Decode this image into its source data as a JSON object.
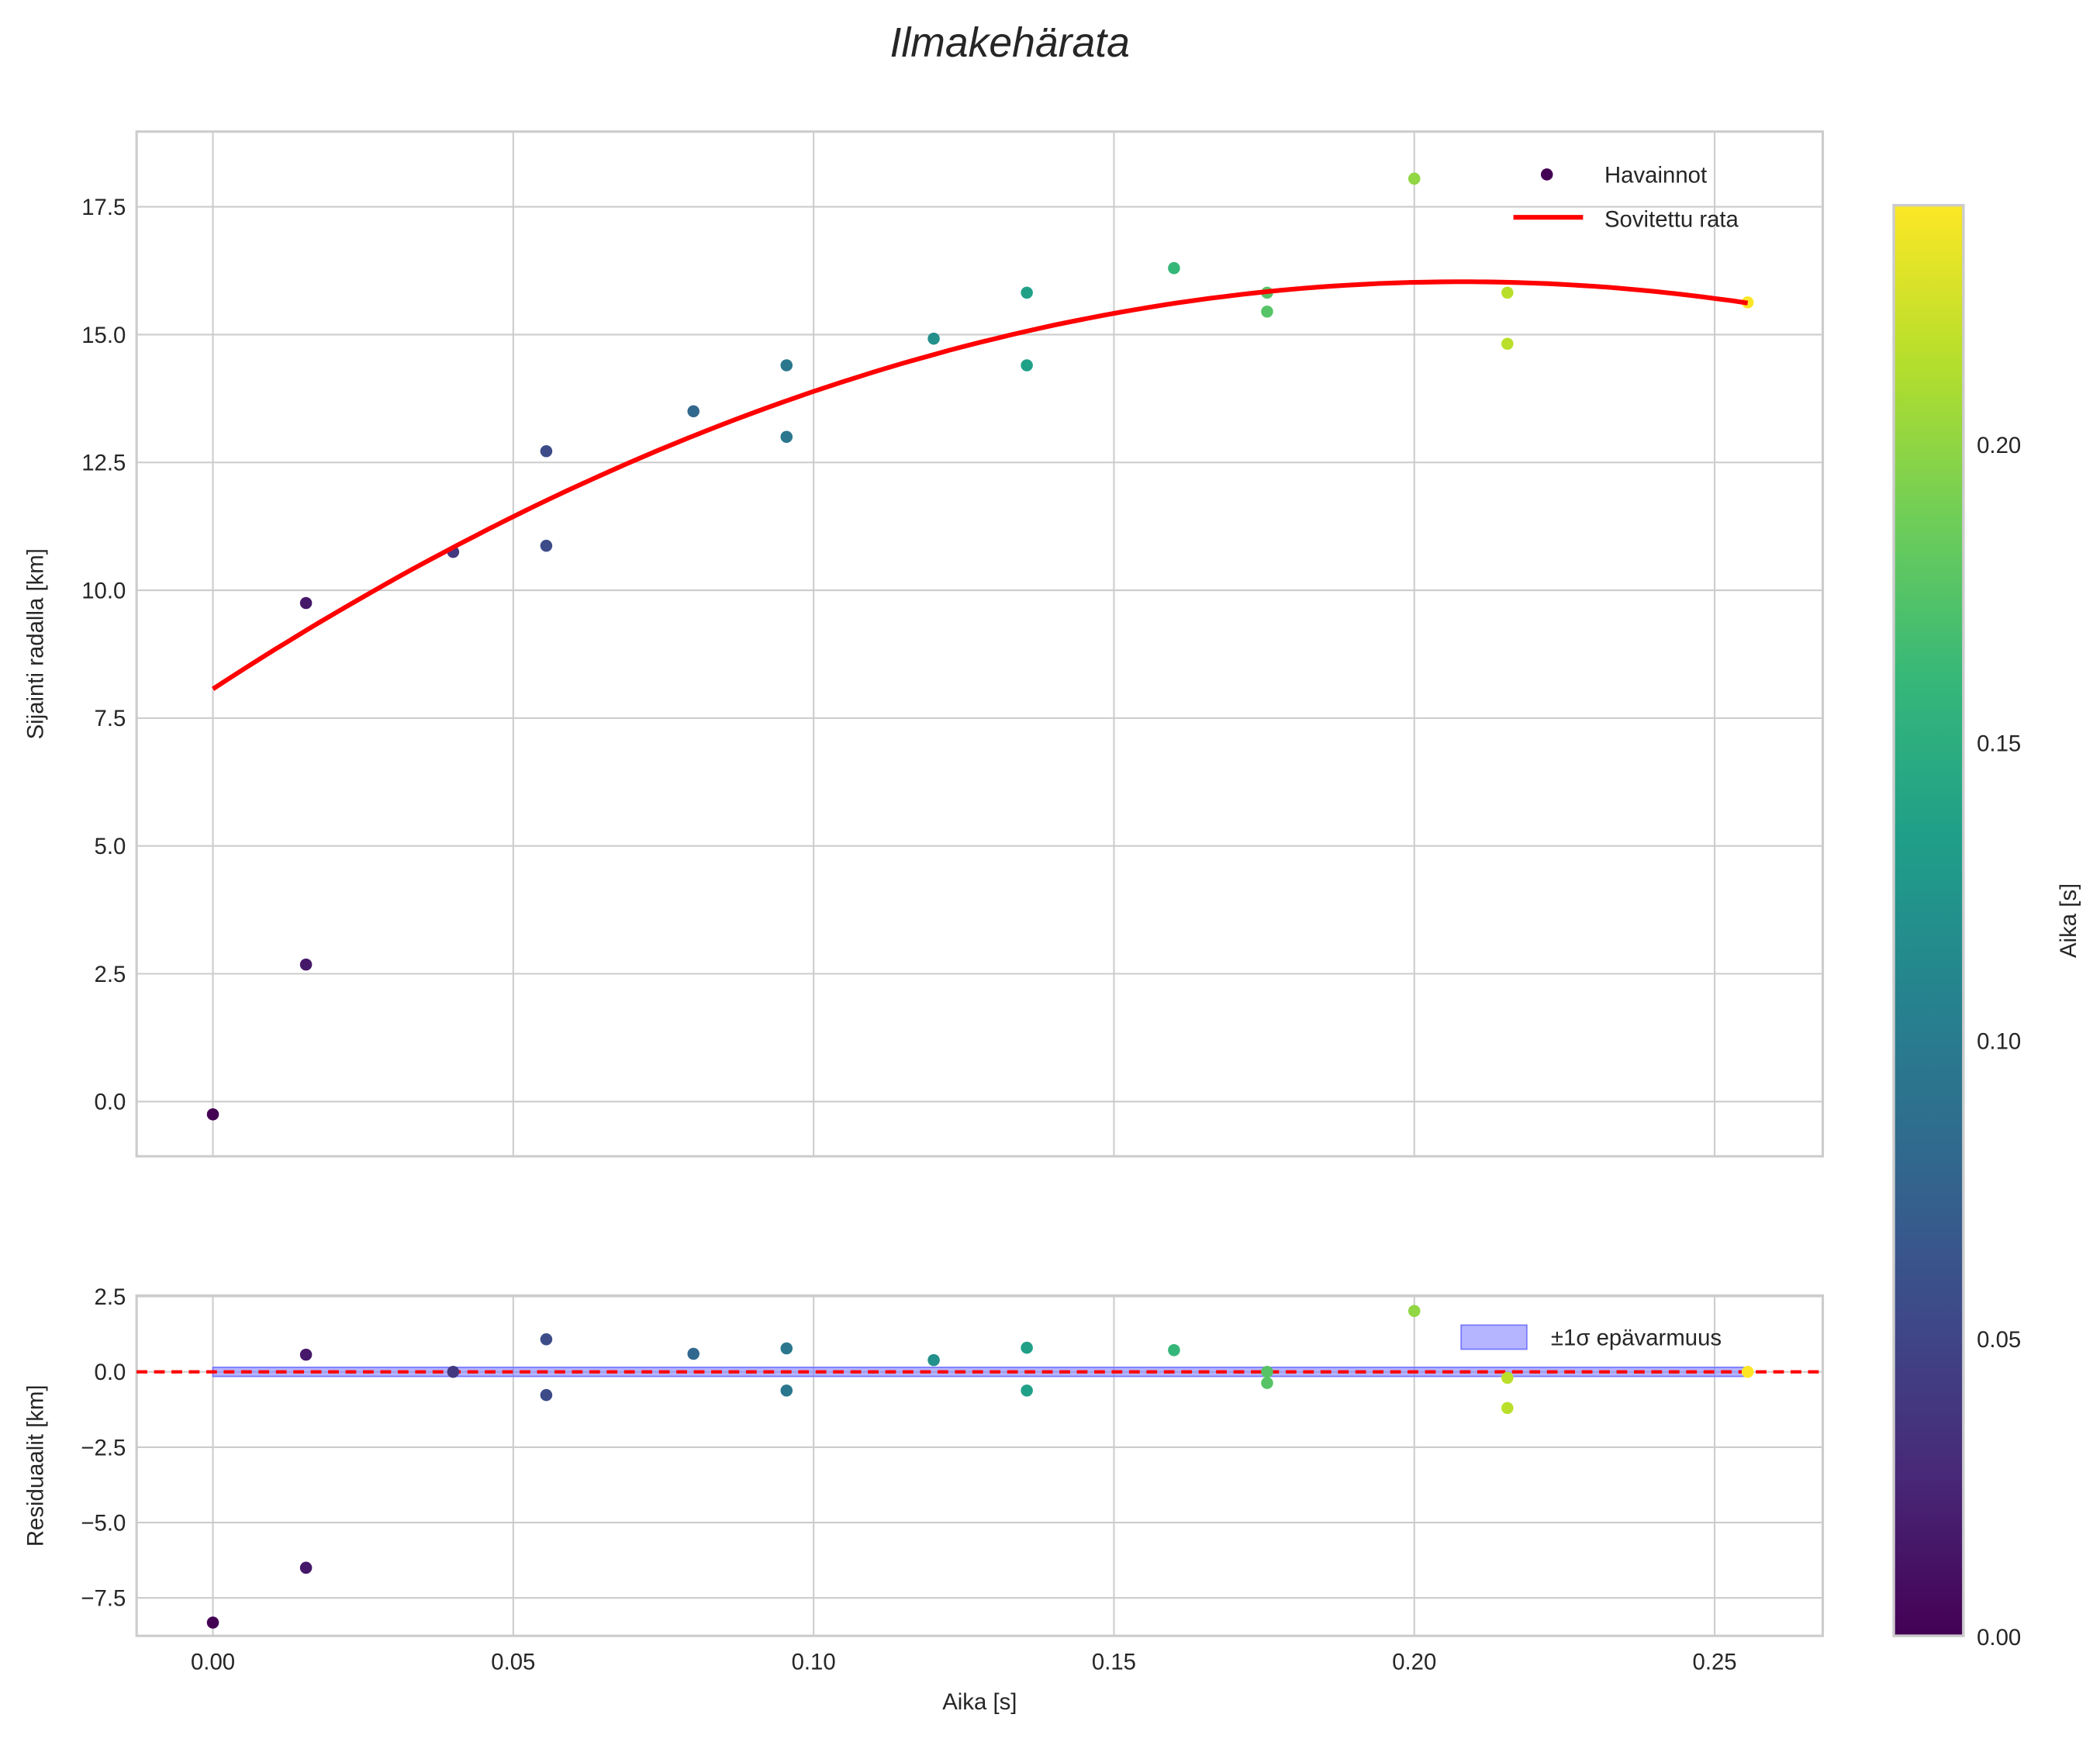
{
  "chart_data": [
    {
      "type": "scatter",
      "panel": "main",
      "title": "Ilmakehärata",
      "xlabel": "",
      "ylabel": "Sijainti radalla [km]",
      "xlim": [
        -0.0127,
        0.268
      ],
      "ylim": [
        -1.07,
        18.97
      ],
      "grid": true,
      "xticks": [
        "0.00",
        "0.05",
        "0.10",
        "0.15",
        "0.20",
        "0.25"
      ],
      "xtick_values": [
        0,
        0.05,
        0.1,
        0.15,
        0.2,
        0.25
      ],
      "yticks": [
        "0.0",
        "2.5",
        "5.0",
        "7.5",
        "10.0",
        "12.5",
        "15.0",
        "17.5"
      ],
      "ytick_values": [
        0,
        2.5,
        5,
        7.5,
        10,
        12.5,
        15,
        17.5
      ],
      "legend": {
        "placement": "top-right",
        "entries": [
          "Havainnot",
          "Sovitettu rata"
        ]
      },
      "series": [
        {
          "name": "Havainnot",
          "kind": "scatter",
          "colormap": "viridis",
          "x": [
            0,
            0.0155,
            0.0155,
            0.04,
            0.0555,
            0.0555,
            0.08,
            0.0955,
            0.0955,
            0.12,
            0.1355,
            0.1355,
            0.16,
            0.1755,
            0.1755,
            0.2,
            0.2155,
            0.2155,
            0.2555
          ],
          "y": [
            -0.25,
            9.75,
            2.68,
            10.75,
            12.72,
            10.87,
            13.5,
            14.4,
            13.0,
            14.92,
            15.82,
            14.4,
            16.3,
            15.82,
            15.45,
            18.05,
            15.82,
            14.82,
            15.63
          ]
        },
        {
          "name": "Sovitettu rata",
          "kind": "line",
          "color": "#ff0000",
          "model": "quadratic",
          "coefficients": [
            8.07,
            76.6,
            -184.2
          ],
          "x_range": [
            0,
            0.2555
          ]
        }
      ]
    },
    {
      "type": "scatter",
      "panel": "residuals",
      "xlabel": "Aika [s]",
      "ylabel": "Residuaalit [km]",
      "xlim": [
        -0.0127,
        0.268
      ],
      "ylim": [
        -8.76,
        2.53
      ],
      "grid": true,
      "xticks": [
        "0.00",
        "0.05",
        "0.10",
        "0.15",
        "0.20",
        "0.25"
      ],
      "xtick_values": [
        0,
        0.05,
        0.1,
        0.15,
        0.2,
        0.25
      ],
      "yticks": [
        "−7.5",
        "−5.0",
        "−2.5",
        "0.0",
        "2.5"
      ],
      "ytick_values": [
        -7.5,
        -5,
        -2.5,
        0,
        2.5
      ],
      "legend": {
        "placement": "top-right",
        "entries": [
          "±1σ epävarmuus"
        ]
      },
      "band": {
        "name": "±1σ epävarmuus",
        "sigma": 0.15,
        "color": "#7777ff"
      },
      "zero_line_color": "#ff0000",
      "series": [
        {
          "name": "Residuaalit",
          "kind": "scatter",
          "colormap": "viridis",
          "x": [
            0,
            0.0155,
            0.0155,
            0.04,
            0.0555,
            0.0555,
            0.08,
            0.0955,
            0.0955,
            0.12,
            0.1355,
            0.1355,
            0.16,
            0.1755,
            0.1755,
            0.2,
            0.2155,
            0.2155,
            0.2555
          ],
          "y": [
            -8.32,
            0.57,
            -6.5,
            0.0,
            1.08,
            -0.77,
            0.6,
            0.78,
            -0.62,
            0.39,
            0.8,
            -0.62,
            0.72,
            0.0,
            -0.37,
            2.02,
            -0.2,
            -1.2,
            0.0
          ]
        }
      ]
    }
  ],
  "colorbar": {
    "label": "Aika [s]",
    "range": [
      0,
      0.24
    ],
    "ticks": [
      "0.00",
      "0.05",
      "0.10",
      "0.15",
      "0.20"
    ],
    "tick_values": [
      0,
      0.05,
      0.1,
      0.15,
      0.2
    ]
  }
}
